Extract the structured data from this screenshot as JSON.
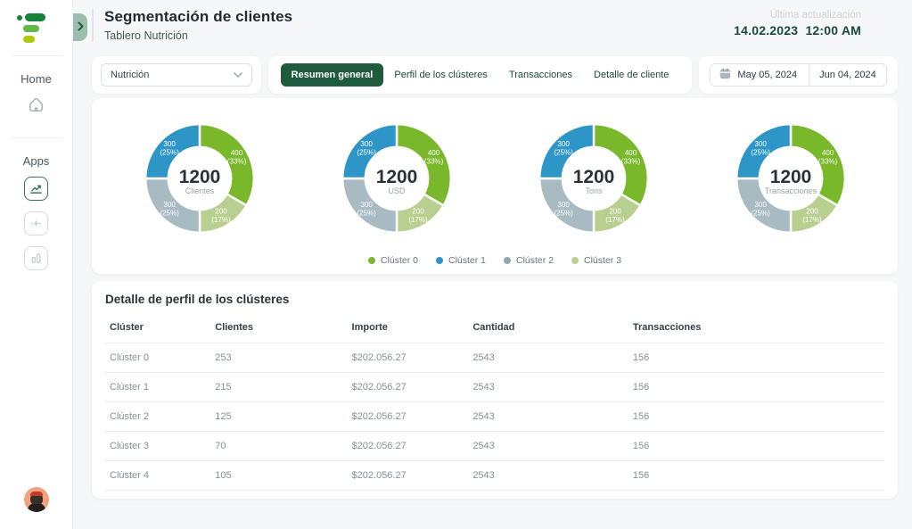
{
  "colors": {
    "accent_green": "#1E5B3C",
    "cluster0": "#79B82A",
    "cluster1": "#2E96C6",
    "cluster2": "#A8BAC2",
    "cluster3": "#B9CF90",
    "avatar_bg": "#F2A27E"
  },
  "sidebar": {
    "home_label": "Home",
    "apps_label": "Apps",
    "icons": [
      "home-icon",
      "trend-chart-app-icon",
      "equalizer-app-icon",
      "bar-chart-app-icon"
    ]
  },
  "header": {
    "title": "Segmentación de clientes",
    "subtitle": "Tablero Nutrición",
    "last_updated_label": "Última actualización",
    "last_updated_date": "14.02.2023",
    "last_updated_time": "12:00 AM"
  },
  "filters": {
    "dashboard_select": {
      "value": "Nutrición"
    },
    "tabs": [
      {
        "label": "Resumen general",
        "active": true
      },
      {
        "label": "Perfil de los clústeres",
        "active": false
      },
      {
        "label": "Transacciones",
        "active": false
      },
      {
        "label": "Detalle de cliente",
        "active": false
      }
    ],
    "date_range": {
      "start": "May 05, 2024",
      "end": "Jun 04, 2024",
      "icon": "calendar-icon"
    }
  },
  "chart_data": [
    {
      "type": "pie",
      "title": "Clientes",
      "center_value": "1200",
      "center_label": "Clientes",
      "legend_position": "bottom",
      "segments": [
        {
          "label": "Clúster 0",
          "value": 400,
          "pct": "33%",
          "color": "#79B82A"
        },
        {
          "label": "Clúster 3",
          "value": 200,
          "pct": "17%",
          "color": "#B9CF90"
        },
        {
          "label": "Clúster 2",
          "value": 300,
          "pct": "25%",
          "color": "#A8BAC2"
        },
        {
          "label": "Clúster 1",
          "value": 300,
          "pct": "25%",
          "color": "#2E96C6"
        }
      ]
    },
    {
      "type": "pie",
      "title": "USD",
      "center_value": "1200",
      "center_label": "USD",
      "legend_position": "bottom",
      "segments": [
        {
          "label": "Clúster 0",
          "value": 400,
          "pct": "33%",
          "color": "#79B82A"
        },
        {
          "label": "Clúster 3",
          "value": 200,
          "pct": "17%",
          "color": "#B9CF90"
        },
        {
          "label": "Clúster 2",
          "value": 300,
          "pct": "25%",
          "color": "#A8BAC2"
        },
        {
          "label": "Clúster 1",
          "value": 300,
          "pct": "25%",
          "color": "#2E96C6"
        }
      ]
    },
    {
      "type": "pie",
      "title": "Tons",
      "center_value": "1200",
      "center_label": "Tons",
      "legend_position": "bottom",
      "segments": [
        {
          "label": "Clúster 0",
          "value": 400,
          "pct": "33%",
          "color": "#79B82A"
        },
        {
          "label": "Clúster 3",
          "value": 200,
          "pct": "17%",
          "color": "#B9CF90"
        },
        {
          "label": "Clúster 2",
          "value": 300,
          "pct": "25%",
          "color": "#A8BAC2"
        },
        {
          "label": "Clúster 1",
          "value": 300,
          "pct": "25%",
          "color": "#2E96C6"
        }
      ]
    },
    {
      "type": "pie",
      "title": "Transacciones",
      "center_value": "1200",
      "center_label": "Transacciones",
      "legend_position": "bottom",
      "segments": [
        {
          "label": "Clúster 0",
          "value": 400,
          "pct": "33%",
          "color": "#79B82A"
        },
        {
          "label": "Clúster 3",
          "value": 200,
          "pct": "17%",
          "color": "#B9CF90"
        },
        {
          "label": "Clúster 2",
          "value": 300,
          "pct": "25%",
          "color": "#A8BAC2"
        },
        {
          "label": "Clúster 1",
          "value": 300,
          "pct": "25%",
          "color": "#2E96C6"
        }
      ]
    }
  ],
  "legend": {
    "items": [
      {
        "label": "Clúster 0",
        "color": "#79B82A"
      },
      {
        "label": "Clúster 1",
        "color": "#2E96C6"
      },
      {
        "label": "Clúster 2",
        "color": "#8FA8B3"
      },
      {
        "label": "Clúster 3",
        "color": "#B9CF90"
      }
    ]
  },
  "table": {
    "title": "Detalle de perfil de los clústeres",
    "columns": [
      "Clúster",
      "Clientes",
      "Importe",
      "Cantidad",
      "Transacciones"
    ],
    "rows": [
      [
        "Clúster 0",
        "253",
        "$202.056.27",
        "2543",
        "156"
      ],
      [
        "Clúster 1",
        "215",
        "$202.056.27",
        "2543",
        "156"
      ],
      [
        "Clúster 2",
        "125",
        "$202.056.27",
        "2543",
        "156"
      ],
      [
        "Clúster 3",
        "70",
        "$202.056.27",
        "2543",
        "156"
      ],
      [
        "Clúster 4",
        "105",
        "$202.056.27",
        "2543",
        "156"
      ]
    ]
  }
}
